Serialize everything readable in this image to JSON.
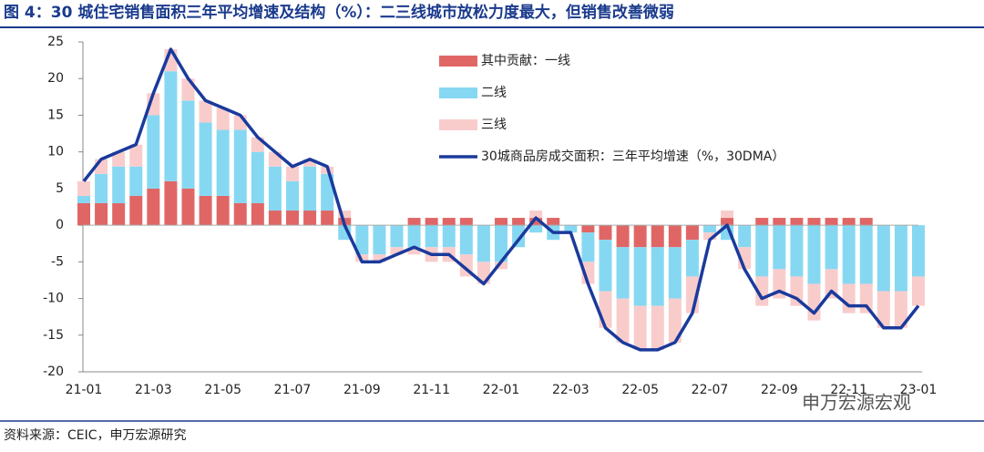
{
  "chart_data": {
    "type": "stacked-bar-line",
    "title": "图 4：30 城住宅销售面积三年平均增速及结构（%）：二三线城市放松力度最大，但销售改善微弱",
    "source": "资料来源：CEIC，申万宏源研究",
    "watermark": "申万宏源宏观",
    "categories": [
      "21-01",
      null,
      null,
      null,
      "21-03",
      null,
      null,
      null,
      "21-05",
      null,
      null,
      null,
      "21-07",
      null,
      null,
      null,
      "21-09",
      null,
      null,
      null,
      "21-11",
      null,
      null,
      null,
      "22-01",
      null,
      null,
      null,
      "22-03",
      null,
      null,
      null,
      "22-05",
      null,
      null,
      null,
      "22-07",
      null,
      null,
      null,
      "22-09",
      null,
      null,
      null,
      "22-11",
      null,
      null,
      null,
      "23-01"
    ],
    "ylim": [
      -20,
      25
    ],
    "yticks": [
      -20,
      -15,
      -10,
      -5,
      0,
      5,
      10,
      15,
      20,
      25
    ],
    "series": [
      {
        "name": "其中贡献：一线",
        "kind": "bar",
        "color": "#e06666",
        "values": [
          3,
          3,
          3,
          4,
          5,
          6,
          5,
          4,
          4,
          3,
          3,
          2,
          2,
          2,
          2,
          1,
          0,
          0,
          0,
          1,
          1,
          1,
          1,
          0,
          1,
          1,
          1,
          1,
          0,
          -1,
          -2,
          -3,
          -3,
          -3,
          -3,
          -2,
          0,
          1,
          0,
          1,
          1,
          1,
          1,
          1,
          1,
          1,
          0,
          0,
          0
        ]
      },
      {
        "name": "二线",
        "kind": "bar",
        "color": "#86d8f2",
        "values": [
          1,
          4,
          5,
          4,
          10,
          15,
          12,
          10,
          9,
          10,
          7,
          6,
          4,
          6,
          5,
          -2,
          -4,
          -4,
          -3,
          -3,
          -3,
          -3,
          -4,
          -5,
          -5,
          -3,
          -1,
          -2,
          -1,
          -4,
          -7,
          -7,
          -8,
          -8,
          -7,
          -5,
          -1,
          -2,
          -3,
          -7,
          -6,
          -7,
          -8,
          -6,
          -8,
          -8,
          -9,
          -9,
          -7
        ]
      },
      {
        "name": "三线",
        "kind": "bar",
        "color": "#f9cccc",
        "values": [
          2,
          2,
          2,
          3,
          3,
          3,
          3,
          3,
          3,
          2,
          2,
          2,
          2,
          1,
          1,
          1,
          -1,
          -1,
          -1,
          -1,
          -2,
          -2,
          -3,
          -3,
          -1,
          0,
          1,
          0,
          0,
          -3,
          -5,
          -6,
          -6,
          -6,
          -6,
          -5,
          -1,
          1,
          -3,
          -4,
          -4,
          -4,
          -5,
          -4,
          -4,
          -4,
          -5,
          -5,
          -4
        ]
      },
      {
        "name": "30城商品房成交面积：三年平均增速（%，30DMA）",
        "kind": "line",
        "color": "#1a3a9c",
        "values": [
          6,
          9,
          10,
          11,
          18,
          24,
          20,
          17,
          16,
          15,
          12,
          10,
          8,
          9,
          8,
          0,
          -5,
          -5,
          -4,
          -3,
          -4,
          -4,
          -6,
          -8,
          -5,
          -2,
          1,
          -1,
          -1,
          -8,
          -14,
          -16,
          -17,
          -17,
          -16,
          -12,
          -2,
          0,
          -6,
          -10,
          -9,
          -10,
          -12,
          -9,
          -11,
          -11,
          -14,
          -14,
          -11
        ]
      }
    ]
  }
}
